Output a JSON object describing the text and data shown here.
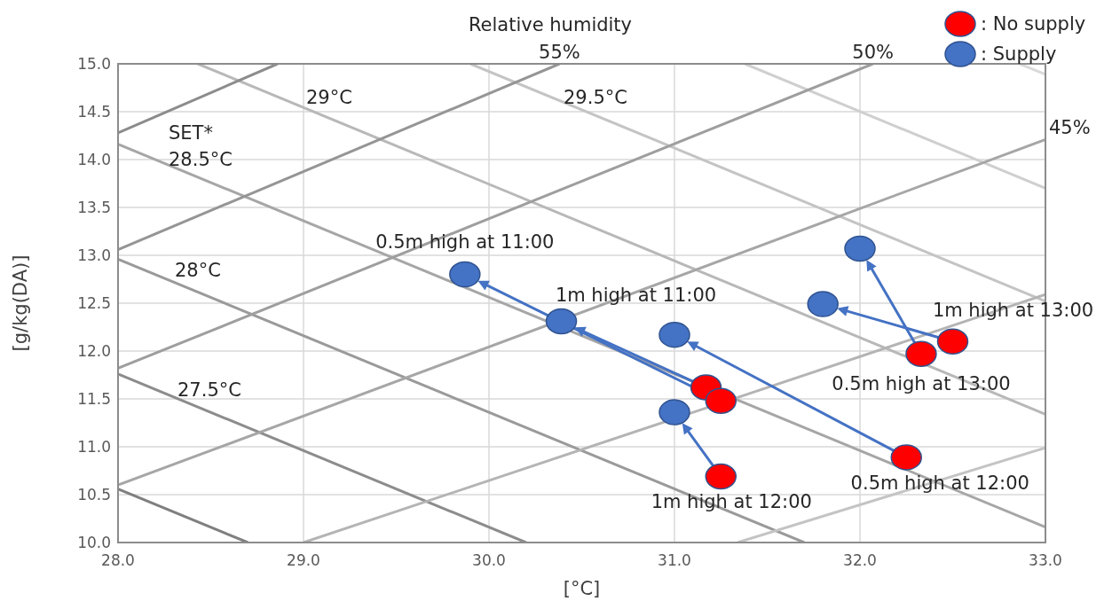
{
  "chart_data": {
    "type": "scatter",
    "xlabel": "[°C]",
    "ylabel": "[g/kg(DA)]",
    "xlim": [
      28,
      33
    ],
    "xticks": [
      {
        "value": 28,
        "label": "28.0"
      },
      {
        "value": 29,
        "label": "29.0"
      },
      {
        "value": 30,
        "label": "30.0"
      },
      {
        "value": 31,
        "label": "31.0"
      },
      {
        "value": 32,
        "label": "32.0"
      },
      {
        "value": 33,
        "label": "33.0"
      }
    ],
    "ylim": [
      10,
      15
    ],
    "yticks": [
      {
        "value": 10,
        "label": "10.0"
      },
      10.5,
      {
        "value": 11,
        "label": "11.0"
      },
      11.5,
      {
        "value": 12,
        "label": "12.0"
      },
      12.5,
      {
        "value": 13,
        "label": "13.0"
      },
      13.5,
      {
        "value": 14,
        "label": "14.0"
      },
      14.5,
      {
        "value": 15,
        "label": "15.0"
      }
    ],
    "grid": true,
    "legend": "top right",
    "series": [
      {
        "type": "line",
        "color": "#dadada",
        "x": [
          32.86,
          33
        ],
        "values": [
          15,
          14.89
        ]
      },
      {
        "type": "line",
        "color": "#cfcfcf",
        "x": [
          31.38,
          33
        ],
        "values": [
          15,
          13.7
        ]
      },
      {
        "type": "line",
        "color": "#c4c4c4",
        "x": [
          29.9,
          33
        ],
        "values": [
          15,
          12.52
        ]
      },
      {
        "type": "line",
        "color": "#b8b8b8",
        "x": [
          28.43,
          33
        ],
        "values": [
          15,
          11.34
        ]
      },
      {
        "type": "line",
        "color": "#a6a6a6",
        "x": [
          28,
          33
        ],
        "values": [
          14.16,
          10.16
        ]
      },
      {
        "type": "line",
        "color": "#9a9a9a",
        "x": [
          28,
          31.7
        ],
        "values": [
          12.96,
          10
        ]
      },
      {
        "type": "line",
        "color": "#8c8c8c",
        "x": [
          28,
          30.2
        ],
        "values": [
          11.76,
          10
        ]
      },
      {
        "type": "line",
        "color": "#7f7f7f",
        "x": [
          28,
          28.7
        ],
        "values": [
          10.56,
          10
        ]
      },
      {
        "type": "line",
        "color": "#8c8c8c",
        "x": [
          28,
          28.86
        ],
        "values": [
          14.28,
          15
        ]
      },
      {
        "type": "line",
        "color": "#959595",
        "x": [
          28,
          30.38
        ],
        "values": [
          13.06,
          15
        ]
      },
      {
        "type": "line",
        "color": "#9e9e9e",
        "x": [
          28,
          32.07
        ],
        "values": [
          11.82,
          15
        ]
      },
      {
        "type": "line",
        "color": "#a6a6a6",
        "x": [
          28,
          33
        ],
        "values": [
          10.6,
          14.21
        ]
      },
      {
        "type": "line",
        "color": "#b4b4b4",
        "x": [
          29,
          33
        ],
        "values": [
          10,
          12.59
        ]
      },
      {
        "type": "line",
        "color": "#c4c4c4",
        "x": [
          31.34,
          33
        ],
        "values": [
          10,
          10.99
        ]
      },
      {
        "name": ": No supply",
        "color": "#ff0000",
        "marker": "circle",
        "x": [
          31.17,
          31.25,
          31.25,
          32.25,
          32.33,
          32.5
        ],
        "values": [
          11.62,
          11.48,
          10.69,
          10.89,
          11.97,
          12.1
        ]
      },
      {
        "name": ": Supply",
        "color": "#4472c4",
        "marker": "circle",
        "x": [
          30.39,
          29.87,
          31.0,
          31.0,
          32.0,
          31.8
        ],
        "values": [
          12.31,
          12.8,
          11.36,
          12.17,
          13.07,
          12.49
        ]
      }
    ],
    "annotations": [
      "Relative humidity",
      {
        "text": "55%",
        "x": 30.38,
        "y": 15
      },
      {
        "text": "50%",
        "x": 32.07,
        "y": 15
      },
      {
        "text": "45%",
        "x": 33,
        "y": 14.21
      },
      "29°C",
      "29.5°C",
      "SET*",
      "28.5°C",
      "28°C",
      "27.5°C",
      {
        "text": "0.5m high at 11:00",
        "x": 29.87,
        "y": 12.8
      },
      {
        "text": "1m high at 11:00",
        "x": 30.39,
        "y": 12.31
      },
      {
        "text": "1m high at 13:00",
        "x": 32.5,
        "y": 12.1
      },
      {
        "text": "0.5m high at 13:00",
        "x": 32.33,
        "y": 11.97
      },
      {
        "text": "0.5m high at 12:00",
        "x": 32.25,
        "y": 10.89
      },
      {
        "text": "1m high at 12:00",
        "x": 31.25,
        "y": 10.69
      }
    ]
  }
}
